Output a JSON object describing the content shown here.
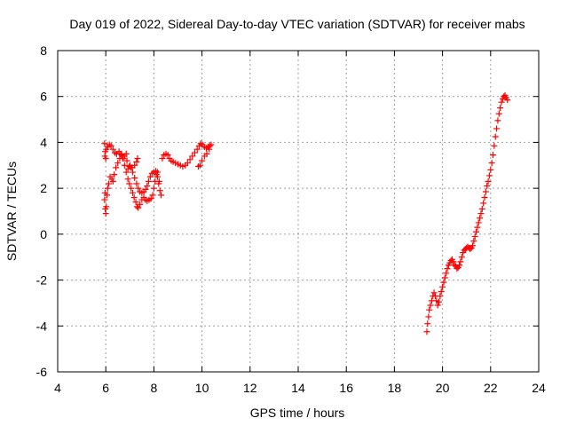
{
  "chart_data": {
    "type": "scatter",
    "title": "Day 019 of 2022, Sidereal Day-to-day VTEC variation (SDTVAR) for receiver mabs",
    "xlabel": "GPS time / hours",
    "ylabel": "SDTVAR / TECUs",
    "xlim": [
      4,
      24
    ],
    "ylim": [
      -6,
      8
    ],
    "x_ticks": [
      4,
      6,
      8,
      10,
      12,
      14,
      16,
      18,
      20,
      22,
      24
    ],
    "x_tick_labels": [
      "4",
      "6",
      "8",
      "10",
      "12",
      "14",
      "16",
      "18",
      "20",
      "22",
      "24"
    ],
    "y_ticks": [
      -6,
      -4,
      -2,
      0,
      2,
      4,
      6,
      8
    ],
    "y_tick_labels": [
      "-6",
      "-4",
      "-2",
      "0",
      "2",
      "4",
      "6",
      "8"
    ],
    "grid": true,
    "marker": "+",
    "color": "#ff0000",
    "series": [
      {
        "name": "SDTVAR",
        "points": [
          [
            5.95,
            3.95
          ],
          [
            5.98,
            3.6
          ],
          [
            6.0,
            3.3
          ],
          [
            5.97,
            1.8
          ],
          [
            5.95,
            1.5
          ],
          [
            5.98,
            1.1
          ],
          [
            6.0,
            0.9
          ],
          [
            6.02,
            1.2
          ],
          [
            6.05,
            1.7
          ],
          [
            6.08,
            2.0
          ],
          [
            6.12,
            2.2
          ],
          [
            6.18,
            2.5
          ],
          [
            6.25,
            2.4
          ],
          [
            6.3,
            2.3
          ],
          [
            6.35,
            2.6
          ],
          [
            6.42,
            2.9
          ],
          [
            6.5,
            3.1
          ],
          [
            6.58,
            3.3
          ],
          [
            6.65,
            3.45
          ],
          [
            6.72,
            3.3
          ],
          [
            6.78,
            3.0
          ],
          [
            6.85,
            2.7
          ],
          [
            6.92,
            2.4
          ],
          [
            6.98,
            2.2
          ],
          [
            7.05,
            2.0
          ],
          [
            7.12,
            1.8
          ],
          [
            7.18,
            1.6
          ],
          [
            7.25,
            1.4
          ],
          [
            7.3,
            1.2
          ],
          [
            7.35,
            1.15
          ],
          [
            7.42,
            1.3
          ],
          [
            7.5,
            1.5
          ],
          [
            7.58,
            1.6
          ],
          [
            7.65,
            1.5
          ],
          [
            7.72,
            1.45
          ],
          [
            7.8,
            1.5
          ],
          [
            7.88,
            1.55
          ],
          [
            7.95,
            1.7
          ],
          [
            8.0,
            2.0
          ],
          [
            8.05,
            2.3
          ],
          [
            8.1,
            2.6
          ],
          [
            8.15,
            2.5
          ],
          [
            8.2,
            2.2
          ],
          [
            8.25,
            1.9
          ],
          [
            8.3,
            1.7
          ],
          [
            8.22,
            2.3
          ],
          [
            8.15,
            2.7
          ],
          [
            8.08,
            2.75
          ],
          [
            8.0,
            2.7
          ],
          [
            7.92,
            2.65
          ],
          [
            7.85,
            2.5
          ],
          [
            7.78,
            2.3
          ],
          [
            7.72,
            2.1
          ],
          [
            7.65,
            1.95
          ],
          [
            7.58,
            1.85
          ],
          [
            7.5,
            1.8
          ],
          [
            7.42,
            1.85
          ],
          [
            7.35,
            2.0
          ],
          [
            7.28,
            2.2
          ],
          [
            7.2,
            2.45
          ],
          [
            7.12,
            2.7
          ],
          [
            7.05,
            2.9
          ],
          [
            6.98,
            2.95
          ],
          [
            6.92,
            2.85
          ],
          [
            6.88,
            3.2
          ],
          [
            6.85,
            3.5
          ],
          [
            6.78,
            3.4
          ],
          [
            6.7,
            3.3
          ],
          [
            6.62,
            3.5
          ],
          [
            6.55,
            3.6
          ],
          [
            6.45,
            3.5
          ],
          [
            6.38,
            3.55
          ],
          [
            6.3,
            3.7
          ],
          [
            6.22,
            3.85
          ],
          [
            6.15,
            3.9
          ],
          [
            6.08,
            3.8
          ],
          [
            6.02,
            3.7
          ],
          [
            5.96,
            3.4
          ],
          [
            7.0,
            3.0
          ],
          [
            7.1,
            2.9
          ],
          [
            7.2,
            3.0
          ],
          [
            7.28,
            3.15
          ],
          [
            7.32,
            3.3
          ],
          [
            8.35,
            3.3
          ],
          [
            8.42,
            3.45
          ],
          [
            8.5,
            3.5
          ],
          [
            8.58,
            3.45
          ],
          [
            8.65,
            3.3
          ],
          [
            8.72,
            3.2
          ],
          [
            8.8,
            3.15
          ],
          [
            8.9,
            3.1
          ],
          [
            9.0,
            3.05
          ],
          [
            9.1,
            3.0
          ],
          [
            9.2,
            2.95
          ],
          [
            9.3,
            3.0
          ],
          [
            9.4,
            3.1
          ],
          [
            9.5,
            3.25
          ],
          [
            9.6,
            3.4
          ],
          [
            9.7,
            3.55
          ],
          [
            9.8,
            3.7
          ],
          [
            9.88,
            3.85
          ],
          [
            9.95,
            3.95
          ],
          [
            10.02,
            3.9
          ],
          [
            10.1,
            3.8
          ],
          [
            10.18,
            3.75
          ],
          [
            10.25,
            3.8
          ],
          [
            10.32,
            3.85
          ],
          [
            10.38,
            3.9
          ],
          [
            10.3,
            3.7
          ],
          [
            10.2,
            3.5
          ],
          [
            10.1,
            3.4
          ],
          [
            10.0,
            3.2
          ],
          [
            9.92,
            3.0
          ],
          [
            9.85,
            2.95
          ],
          [
            19.35,
            -4.25
          ],
          [
            19.38,
            -3.9
          ],
          [
            19.42,
            -3.6
          ],
          [
            19.45,
            -3.3
          ],
          [
            19.5,
            -3.1
          ],
          [
            19.55,
            -2.9
          ],
          [
            19.6,
            -2.7
          ],
          [
            19.65,
            -2.55
          ],
          [
            19.7,
            -2.7
          ],
          [
            19.75,
            -2.9
          ],
          [
            19.8,
            -3.1
          ],
          [
            19.85,
            -2.95
          ],
          [
            19.9,
            -2.7
          ],
          [
            19.95,
            -2.5
          ],
          [
            20.0,
            -2.3
          ],
          [
            20.05,
            -2.1
          ],
          [
            20.1,
            -1.9
          ],
          [
            20.15,
            -1.7
          ],
          [
            20.2,
            -1.5
          ],
          [
            20.25,
            -1.35
          ],
          [
            20.3,
            -1.25
          ],
          [
            20.35,
            -1.15
          ],
          [
            20.4,
            -1.1
          ],
          [
            20.45,
            -1.2
          ],
          [
            20.5,
            -1.35
          ],
          [
            20.55,
            -1.4
          ],
          [
            20.6,
            -1.5
          ],
          [
            20.65,
            -1.45
          ],
          [
            20.7,
            -1.35
          ],
          [
            20.75,
            -1.2
          ],
          [
            20.8,
            -1.0
          ],
          [
            20.85,
            -0.8
          ],
          [
            20.9,
            -0.7
          ],
          [
            20.95,
            -0.65
          ],
          [
            21.0,
            -0.6
          ],
          [
            21.05,
            -0.55
          ],
          [
            21.1,
            -0.6
          ],
          [
            21.15,
            -0.65
          ],
          [
            21.2,
            -0.6
          ],
          [
            21.25,
            -0.5
          ],
          [
            21.3,
            -0.3
          ],
          [
            21.35,
            -0.1
          ],
          [
            21.4,
            0.1
          ],
          [
            21.45,
            0.3
          ],
          [
            21.5,
            0.5
          ],
          [
            21.55,
            0.7
          ],
          [
            21.6,
            0.9
          ],
          [
            21.65,
            1.1
          ],
          [
            21.7,
            1.35
          ],
          [
            21.75,
            1.6
          ],
          [
            21.8,
            1.85
          ],
          [
            21.85,
            2.1
          ],
          [
            21.9,
            2.3
          ],
          [
            21.95,
            2.55
          ],
          [
            22.0,
            2.8
          ],
          [
            22.05,
            3.1
          ],
          [
            22.1,
            3.45
          ],
          [
            22.15,
            3.85
          ],
          [
            22.2,
            4.25
          ],
          [
            22.25,
            4.6
          ],
          [
            22.3,
            4.95
          ],
          [
            22.35,
            5.25
          ],
          [
            22.4,
            5.5
          ],
          [
            22.45,
            5.75
          ],
          [
            22.5,
            5.9
          ],
          [
            22.55,
            6.0
          ],
          [
            22.6,
            6.05
          ],
          [
            22.65,
            5.95
          ],
          [
            22.7,
            5.85
          ]
        ]
      }
    ]
  }
}
